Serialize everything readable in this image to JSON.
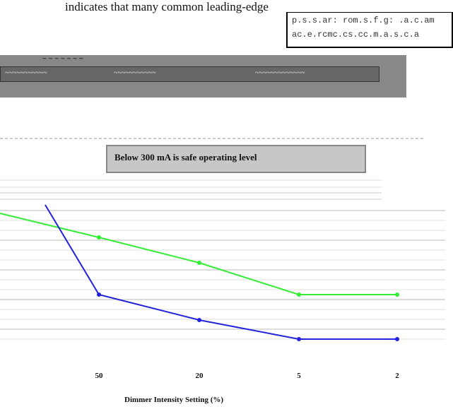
{
  "header_text": "indicates that many common leading-edge",
  "right_box": {
    "line1": "p.s.s.ar: rom.s.f.g: .a.c.am",
    "line2": "ac.e.rcmc.cs.cc.m.a.s.c.a"
  },
  "panel": {
    "title": "~ ~ ~ ~ ~ ~ ~",
    "legend": [
      "~~~~~~~~~~~",
      "~~~~~~~~~~~",
      "~~~~~~~~~~~~~"
    ]
  },
  "annotation": "Below 300 mA is safe operating level",
  "chart_data": {
    "type": "line",
    "xlabel": "Dimmer Intensity Setting (%)",
    "ylabel": "",
    "categories": [
      "50",
      "20",
      "5",
      "2"
    ],
    "x_tick_labels": [
      "50",
      "20",
      "5",
      "2"
    ],
    "series": [
      {
        "color": "#33ee33",
        "values": [
          0.9,
          0.7,
          0.45,
          0.45
        ],
        "start_value": 1.0
      },
      {
        "color": "#2222dd",
        "values": [
          0.45,
          0.25,
          0.1,
          0.1
        ],
        "start_value": 1.4
      }
    ]
  },
  "colors": {
    "green": "#33ee33",
    "blue": "#2222dd",
    "label_bg": "#c7c7c7"
  }
}
